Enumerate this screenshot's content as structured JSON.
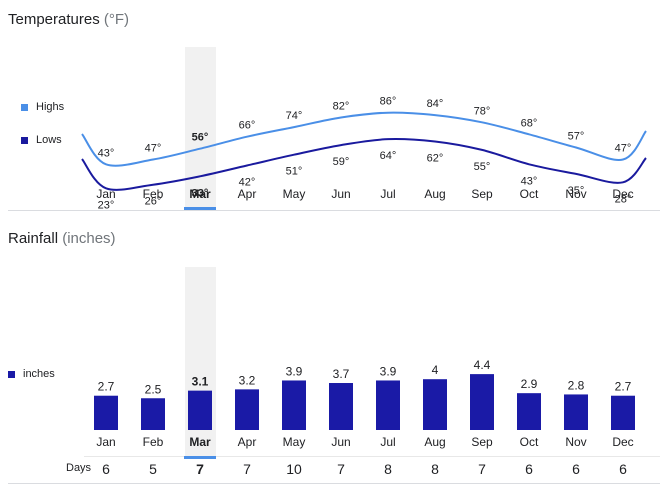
{
  "temperatures": {
    "title": "Temperatures",
    "unit": "(°F)",
    "legend": [
      {
        "label": "Highs",
        "color": "#4a8fe7"
      },
      {
        "label": "Lows",
        "color": "#1a1a9e"
      }
    ]
  },
  "rainfall": {
    "title": "Rainfall",
    "unit": "(inches)",
    "legend": [
      {
        "label": "inches",
        "color": "#1a1aa6"
      }
    ],
    "days_label": "Days"
  },
  "selected_month": "Mar",
  "colors": {
    "highs": "#4a8fe7",
    "lows": "#1a1a9e",
    "bars": "#1a1aa6",
    "selected": "#4a8fe7",
    "highlight": "#f1f1f1"
  },
  "chart_data": [
    {
      "type": "line",
      "title": "Temperatures (°F)",
      "categories": [
        "Jan",
        "Feb",
        "Mar",
        "Apr",
        "May",
        "Jun",
        "Jul",
        "Aug",
        "Sep",
        "Oct",
        "Nov",
        "Dec"
      ],
      "series": [
        {
          "name": "Highs",
          "values": [
            43,
            47,
            56,
            66,
            74,
            82,
            86,
            84,
            78,
            68,
            57,
            47
          ],
          "labels": [
            "43°",
            "47°",
            "56°",
            "66°",
            "74°",
            "82°",
            "86°",
            "84°",
            "78°",
            "68°",
            "57°",
            "47°"
          ]
        },
        {
          "name": "Lows",
          "values": [
            23,
            26,
            33,
            42,
            51,
            59,
            64,
            62,
            55,
            43,
            35,
            28
          ],
          "labels": [
            "23°",
            "26°",
            "33°",
            "42°",
            "51°",
            "59°",
            "64°",
            "62°",
            "55°",
            "43°",
            "35°",
            "28°"
          ]
        }
      ],
      "legend": "left"
    },
    {
      "type": "bar",
      "title": "Rainfall (inches)",
      "categories": [
        "Jan",
        "Feb",
        "Mar",
        "Apr",
        "May",
        "Jun",
        "Jul",
        "Aug",
        "Sep",
        "Oct",
        "Nov",
        "Dec"
      ],
      "series": [
        {
          "name": "inches",
          "values": [
            2.7,
            2.5,
            3.1,
            3.2,
            3.9,
            3.7,
            3.9,
            4,
            4.4,
            2.9,
            2.8,
            2.7
          ],
          "labels": [
            "2.7",
            "2.5",
            "3.1",
            "3.2",
            "3.9",
            "3.7",
            "3.9",
            "4",
            "4.4",
            "2.9",
            "2.8",
            "2.7"
          ]
        }
      ],
      "days": [
        "6",
        "5",
        "7",
        "7",
        "10",
        "7",
        "8",
        "8",
        "7",
        "6",
        "6",
        "6"
      ],
      "legend": "left"
    }
  ]
}
